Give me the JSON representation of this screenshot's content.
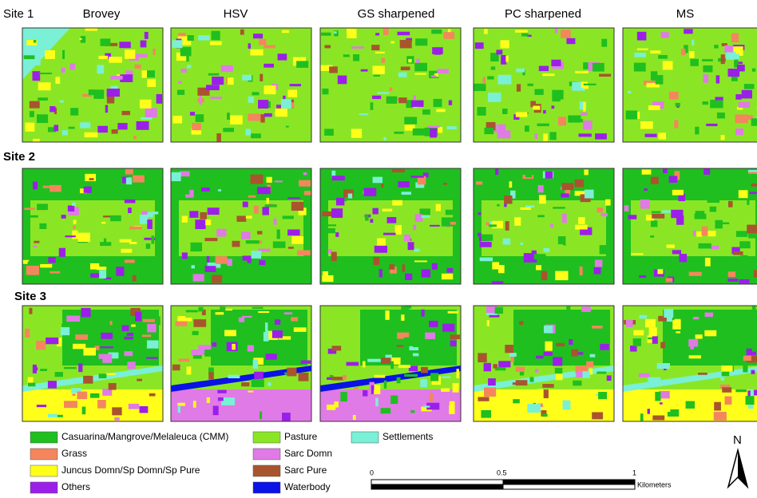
{
  "columns": [
    "Brovey",
    "HSV",
    "GS sharpened",
    "PC sharpened",
    "MS"
  ],
  "rows": [
    "Site 1",
    "Site 2",
    "Site 3"
  ],
  "legend": [
    {
      "label": "Casuarina/Mangrove/Melaleuca (CMM)",
      "color": "#1fbf1f"
    },
    {
      "label": "Grass",
      "color": "#f4865e"
    },
    {
      "label": "Juncus Domn/Sp Domn/Sp Pure",
      "color": "#ffff1a"
    },
    {
      "label": "Others",
      "color": "#9b1fe8"
    },
    {
      "label": "Pasture",
      "color": "#8ae624"
    },
    {
      "label": "Sarc Domn",
      "color": "#e07ae6"
    },
    {
      "label": "Sarc Pure",
      "color": "#a8552e"
    },
    {
      "label": "Waterbody",
      "color": "#0a12e6"
    },
    {
      "label": "Settlements",
      "color": "#7af0d6"
    }
  ],
  "scale_bar": {
    "ticks": [
      0,
      0.5,
      1
    ],
    "unit": "Kilometers"
  },
  "north": "N"
}
